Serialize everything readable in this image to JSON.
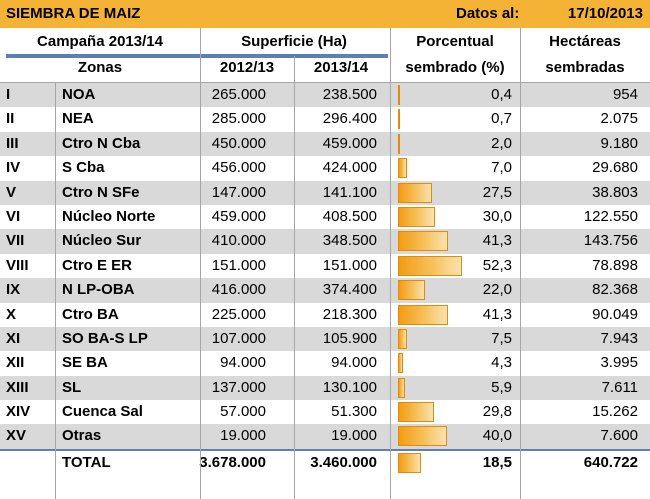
{
  "title": "SIEMBRA DE MAIZ",
  "date_label": "Datos al:",
  "date_value": "17/10/2013",
  "headers": {
    "campaign": "Campaña 2013/14",
    "surface": "Superficie (Ha)",
    "pct_line1": "Porcentual",
    "pct_line2": "sembrado (%)",
    "ha_line1": "Hectáreas",
    "ha_line2": "sembradas",
    "zones": "Zonas",
    "year1": "2012/13",
    "year2": "2013/14"
  },
  "rows": [
    {
      "roman": "I",
      "zone": "NOA",
      "s12": "265.000",
      "s13": "238.500",
      "pct": "0,4",
      "pct_value": 0.4,
      "ha": "954"
    },
    {
      "roman": "II",
      "zone": "NEA",
      "s12": "285.000",
      "s13": "296.400",
      "pct": "0,7",
      "pct_value": 0.7,
      "ha": "2.075"
    },
    {
      "roman": "III",
      "zone": "Ctro N Cba",
      "s12": "450.000",
      "s13": "459.000",
      "pct": "2,0",
      "pct_value": 2.0,
      "ha": "9.180"
    },
    {
      "roman": "IV",
      "zone": "S Cba",
      "s12": "456.000",
      "s13": "424.000",
      "pct": "7,0",
      "pct_value": 7.0,
      "ha": "29.680"
    },
    {
      "roman": "V",
      "zone": "Ctro N SFe",
      "s12": "147.000",
      "s13": "141.100",
      "pct": "27,5",
      "pct_value": 27.5,
      "ha": "38.803"
    },
    {
      "roman": "VI",
      "zone": "Núcleo Norte",
      "s12": "459.000",
      "s13": "408.500",
      "pct": "30,0",
      "pct_value": 30.0,
      "ha": "122.550"
    },
    {
      "roman": "VII",
      "zone": "Núcleo Sur",
      "s12": "410.000",
      "s13": "348.500",
      "pct": "41,3",
      "pct_value": 41.3,
      "ha": "143.756"
    },
    {
      "roman": "VIII",
      "zone": "Ctro E ER",
      "s12": "151.000",
      "s13": "151.000",
      "pct": "52,3",
      "pct_value": 52.3,
      "ha": "78.898"
    },
    {
      "roman": "IX",
      "zone": "N LP-OBA",
      "s12": "416.000",
      "s13": "374.400",
      "pct": "22,0",
      "pct_value": 22.0,
      "ha": "82.368"
    },
    {
      "roman": "X",
      "zone": "Ctro BA",
      "s12": "225.000",
      "s13": "218.300",
      "pct": "41,3",
      "pct_value": 41.3,
      "ha": "90.049"
    },
    {
      "roman": "XI",
      "zone": "SO BA-S LP",
      "s12": "107.000",
      "s13": "105.900",
      "pct": "7,5",
      "pct_value": 7.5,
      "ha": "7.943"
    },
    {
      "roman": "XII",
      "zone": "SE BA",
      "s12": "94.000",
      "s13": "94.000",
      "pct": "4,3",
      "pct_value": 4.3,
      "ha": "3.995"
    },
    {
      "roman": "XIII",
      "zone": "SL",
      "s12": "137.000",
      "s13": "130.100",
      "pct": "5,9",
      "pct_value": 5.9,
      "ha": "7.611"
    },
    {
      "roman": "XIV",
      "zone": "Cuenca Sal",
      "s12": "57.000",
      "s13": "51.300",
      "pct": "29,8",
      "pct_value": 29.8,
      "ha": "15.262"
    },
    {
      "roman": "XV",
      "zone": "Otras",
      "s12": "19.000",
      "s13": "19.000",
      "pct": "40,0",
      "pct_value": 40.0,
      "ha": "7.600"
    }
  ],
  "total": {
    "label": "TOTAL",
    "s12": "3.678.000",
    "s13": "3.460.000",
    "pct": "18,5",
    "pct_value": 18.5,
    "ha": "640.722"
  }
}
